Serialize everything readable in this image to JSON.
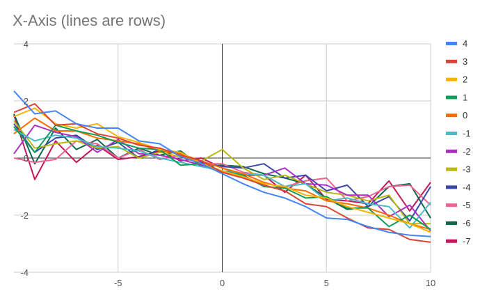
{
  "chart_data": {
    "type": "line",
    "title": "X-Axis (lines are rows)",
    "xlabel": "",
    "ylabel": "",
    "xlim": [
      -10,
      10
    ],
    "ylim": [
      -4,
      4
    ],
    "x_ticks": [
      -5,
      0,
      5,
      10
    ],
    "y_ticks": [
      4,
      2,
      0,
      -2,
      -4
    ],
    "grid": true,
    "legend_position": "right",
    "x": [
      -10,
      -9,
      -8,
      -7,
      -6,
      -5,
      -4,
      -3,
      -2,
      -1,
      0,
      1,
      2,
      3,
      4,
      5,
      6,
      7,
      8,
      9,
      10
    ],
    "series": [
      {
        "name": "4",
        "color": "#4285f4",
        "values": [
          2.35,
          1.55,
          1.65,
          1.2,
          1.05,
          1.05,
          0.6,
          0.5,
          0.05,
          -0.2,
          -0.55,
          -0.9,
          -1.2,
          -1.4,
          -1.7,
          -2.1,
          -2.15,
          -2.4,
          -2.6,
          -2.7,
          -2.75
        ]
      },
      {
        "name": "3",
        "color": "#db4437",
        "values": [
          1.6,
          1.9,
          1.15,
          1.2,
          0.85,
          0.7,
          0.45,
          0.35,
          0.1,
          -0.1,
          -0.5,
          -0.7,
          -0.95,
          -1.15,
          -1.6,
          -1.7,
          -2.1,
          -2.45,
          -2.5,
          -2.85,
          -2.95
        ]
      },
      {
        "name": "2",
        "color": "#f4b400",
        "values": [
          1.45,
          1.75,
          1.2,
          1.05,
          1.2,
          0.75,
          0.55,
          0.3,
          0.2,
          -0.2,
          -0.45,
          -0.65,
          -0.9,
          -1.0,
          -1.3,
          -1.4,
          -1.7,
          -1.9,
          -2.1,
          -2.3,
          -2.6
        ]
      },
      {
        "name": "1",
        "color": "#0f9d58",
        "values": [
          1.1,
          0.2,
          1.15,
          0.95,
          0.8,
          0.55,
          0.35,
          0.3,
          -0.25,
          -0.2,
          -0.45,
          -0.6,
          -1.0,
          -1.05,
          -1.4,
          -1.35,
          -1.75,
          -1.75,
          -2.4,
          -2.0,
          -2.5
        ]
      },
      {
        "name": "0",
        "color": "#ff6d01",
        "values": [
          0.85,
          1.4,
          0.95,
          0.95,
          0.7,
          0.6,
          0.5,
          0.25,
          0.15,
          -0.1,
          -0.35,
          -0.55,
          -0.85,
          -1.05,
          -1.15,
          -1.5,
          -1.6,
          -1.75,
          -2.0,
          -2.3,
          -2.5
        ]
      },
      {
        "name": "-1",
        "color": "#46bdc6",
        "values": [
          1.0,
          0.6,
          0.8,
          0.7,
          0.4,
          0.35,
          0.25,
          0.0,
          -0.15,
          -0.3,
          -0.45,
          -0.55,
          -0.6,
          -1.0,
          -0.9,
          -1.5,
          -1.4,
          -1.6,
          -1.7,
          -2.45,
          -1.55
        ]
      },
      {
        "name": "-2",
        "color": "#ab30c4",
        "values": [
          0.15,
          1.15,
          0.9,
          0.75,
          0.2,
          0.65,
          0.15,
          0.1,
          -0.05,
          -0.25,
          -0.5,
          -0.55,
          -0.6,
          -0.35,
          -0.9,
          -0.95,
          -1.3,
          -1.3,
          -2.05,
          -1.65,
          -2.55
        ]
      },
      {
        "name": "-3",
        "color": "#b8b80e",
        "values": [
          1.3,
          0.35,
          0.5,
          0.6,
          0.35,
          0.4,
          0.0,
          0.2,
          0.05,
          -0.1,
          0.3,
          -0.35,
          -0.75,
          -0.6,
          -0.9,
          -1.2,
          -1.3,
          -1.5,
          -1.3,
          -2.3,
          -2.3
        ]
      },
      {
        "name": "-4",
        "color": "#3949ab",
        "values": [
          1.2,
          0.2,
          0.7,
          0.8,
          0.3,
          0.55,
          0.0,
          0.3,
          0.15,
          -0.15,
          -0.3,
          -0.35,
          -0.2,
          -0.7,
          -0.6,
          -1.15,
          -0.95,
          -1.7,
          -1.35,
          -2.2,
          -1.0
        ]
      },
      {
        "name": "-5",
        "color": "#f06292",
        "values": [
          0.0,
          -0.15,
          -0.05,
          0.6,
          0.5,
          0.0,
          0.3,
          -0.05,
          0.1,
          -0.2,
          -0.2,
          -0.5,
          -0.6,
          -1.0,
          -0.8,
          -0.7,
          -1.5,
          -1.35,
          -1.0,
          -0.95,
          -1.65
        ]
      },
      {
        "name": "-6",
        "color": "#0b6a4e",
        "values": [
          1.55,
          -0.2,
          1.05,
          0.3,
          0.65,
          0.0,
          0.35,
          0.1,
          0.25,
          -0.3,
          -0.25,
          -0.3,
          -0.55,
          -0.7,
          -0.9,
          -1.4,
          -1.8,
          -1.7,
          -1.0,
          -0.9,
          -2.1
        ]
      },
      {
        "name": "-7",
        "color": "#c2185b",
        "values": [
          1.5,
          -0.75,
          0.6,
          -0.15,
          0.45,
          -0.05,
          0.05,
          0.25,
          -0.1,
          0.0,
          -0.35,
          -0.6,
          -0.6,
          -1.2,
          -0.6,
          -1.45,
          -1.5,
          -1.6,
          -0.8,
          -1.85,
          -0.85
        ]
      }
    ]
  }
}
